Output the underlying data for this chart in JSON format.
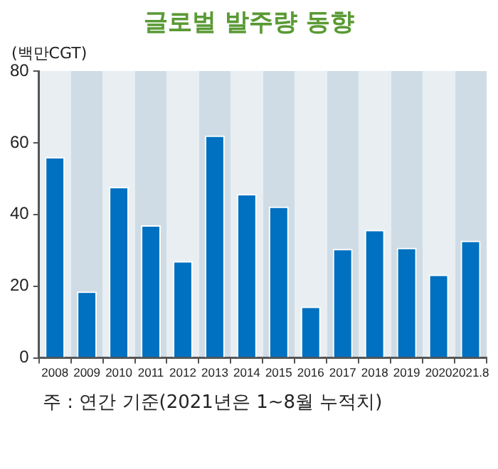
{
  "chart_data": {
    "type": "bar",
    "title": "글로벌 발주량 동향",
    "ylabel": "(백만CGT)",
    "categories": [
      "2008",
      "2009",
      "2010",
      "2011",
      "2012",
      "2013",
      "2014",
      "2015",
      "2016",
      "2017",
      "2018",
      "2019",
      "2020",
      "2021.8"
    ],
    "values": [
      56,
      18.5,
      47.7,
      37,
      27,
      62,
      45.7,
      42.2,
      14.3,
      30.4,
      35.7,
      30.7,
      23.2,
      32.7
    ],
    "color": "#0070c0",
    "ylim": [
      0,
      80
    ],
    "yticks": [
      0,
      20,
      40,
      60,
      80
    ],
    "grid": false,
    "legend": false,
    "annotations": [
      "주 : 연간 기준(2021년은 1~8월 누적치)"
    ]
  }
}
